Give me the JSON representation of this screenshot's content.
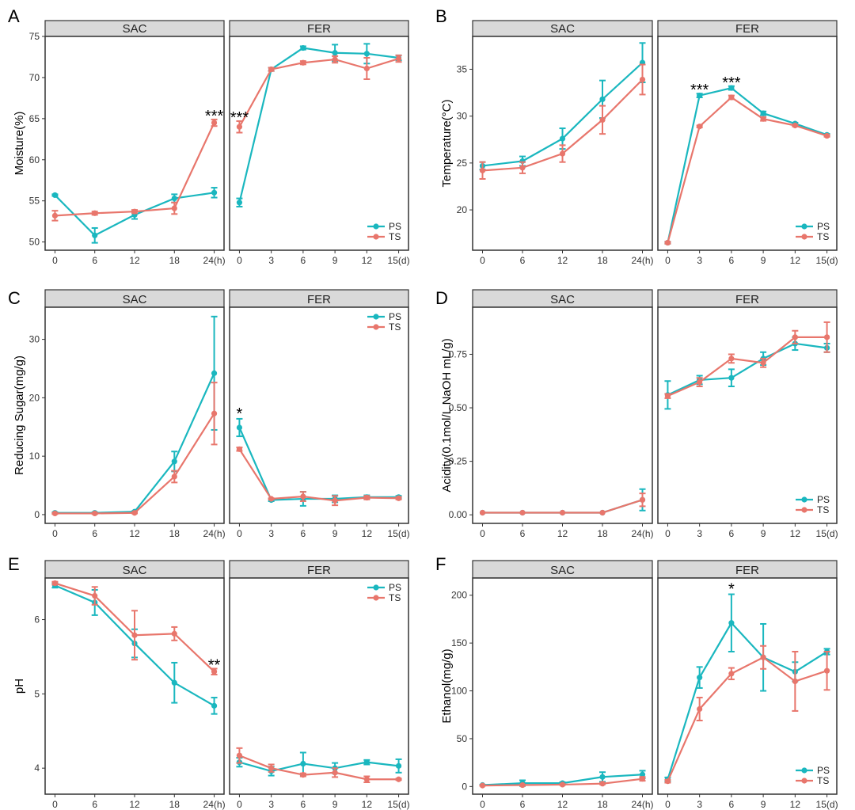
{
  "colors": {
    "PS": "#1ab7bf",
    "TS": "#e8766c",
    "strip": "#d9d9d9",
    "frame": "#333333"
  },
  "legend_labels": [
    "PS",
    "TS"
  ],
  "chart_data": [
    {
      "panel": "A",
      "type": "line",
      "ylabel": "Moisture(%)",
      "ylim": [
        49,
        75
      ],
      "yticks": [
        50,
        55,
        60,
        65,
        70,
        75
      ],
      "legend_position": "bottom-right",
      "facets": [
        {
          "strip": "SAC",
          "xticks": [
            "0",
            "6",
            "12",
            "18",
            "24(h)"
          ],
          "series": [
            {
              "name": "PS",
              "values": [
                55.7,
                50.8,
                53.3,
                55.3,
                56.0
              ],
              "errors": [
                0.1,
                0.9,
                0.5,
                0.5,
                0.6
              ]
            },
            {
              "name": "TS",
              "values": [
                53.2,
                53.5,
                53.7,
                54.1,
                64.5
              ],
              "errors": [
                0.6,
                0.2,
                0.2,
                0.7,
                0.4
              ]
            }
          ],
          "annotations": [
            {
              "index": 4,
              "label": "***"
            }
          ]
        },
        {
          "strip": "FER",
          "xticks": [
            "0",
            "3",
            "6",
            "9",
            "12",
            "15(d)"
          ],
          "series": [
            {
              "name": "PS",
              "values": [
                54.8,
                71.0,
                73.6,
                73.0,
                72.9,
                72.4
              ],
              "errors": [
                0.5,
                0.2,
                0.2,
                1.0,
                1.2,
                0.3
              ]
            },
            {
              "name": "TS",
              "values": [
                64.0,
                71.0,
                71.8,
                72.2,
                71.1,
                72.3
              ],
              "errors": [
                0.7,
                0.2,
                0.2,
                0.4,
                1.3,
                0.4
              ]
            }
          ],
          "annotations": [
            {
              "index": 0,
              "label": "***"
            }
          ]
        }
      ]
    },
    {
      "panel": "B",
      "type": "line",
      "ylabel": "Temperature(°C)",
      "ylim": [
        15.7,
        38.5
      ],
      "yticks": [
        20,
        25,
        30,
        35
      ],
      "legend_position": "bottom-right",
      "facets": [
        {
          "strip": "SAC",
          "xticks": [
            "0",
            "6",
            "12",
            "18",
            "24(h)"
          ],
          "series": [
            {
              "name": "PS",
              "values": [
                24.7,
                25.2,
                27.6,
                31.8,
                35.7
              ],
              "errors": [
                0.4,
                0.5,
                1.1,
                2.0,
                2.1
              ]
            },
            {
              "name": "TS",
              "values": [
                24.2,
                24.5,
                26.0,
                29.6,
                33.9
              ],
              "errors": [
                0.9,
                0.6,
                0.9,
                1.5,
                1.6
              ]
            }
          ],
          "annotations": []
        },
        {
          "strip": "FER",
          "xticks": [
            "0",
            "3",
            "6",
            "9",
            "12",
            "15(d)"
          ],
          "series": [
            {
              "name": "PS",
              "values": [
                16.5,
                32.2,
                33.0,
                30.3,
                29.2,
                28.0
              ],
              "errors": [
                0.1,
                0.2,
                0.2,
                0.2,
                0.1,
                0.1
              ]
            },
            {
              "name": "TS",
              "values": [
                16.5,
                28.9,
                32.0,
                29.7,
                29.0,
                27.9
              ],
              "errors": [
                0.1,
                0.1,
                0.2,
                0.2,
                0.1,
                0.1
              ]
            }
          ],
          "annotations": [
            {
              "index": 1,
              "label": "***"
            },
            {
              "index": 2,
              "label": "***"
            }
          ]
        }
      ]
    },
    {
      "panel": "C",
      "type": "line",
      "ylabel": "Reducing Sugar(mg/g)",
      "ylim": [
        -1.5,
        35.5
      ],
      "yticks": [
        0,
        10,
        20,
        30
      ],
      "legend_position": "top-right",
      "facets": [
        {
          "strip": "SAC",
          "xticks": [
            "0",
            "6",
            "12",
            "18",
            "24(h)"
          ],
          "series": [
            {
              "name": "PS",
              "values": [
                0.3,
                0.3,
                0.5,
                9.1,
                24.2
              ],
              "errors": [
                0.1,
                0.1,
                0.1,
                1.7,
                9.7
              ]
            },
            {
              "name": "TS",
              "values": [
                0.2,
                0.2,
                0.3,
                6.5,
                17.3
              ],
              "errors": [
                0.1,
                0.1,
                0.1,
                1.0,
                5.3
              ]
            }
          ],
          "annotations": []
        },
        {
          "strip": "FER",
          "xticks": [
            "0",
            "3",
            "6",
            "9",
            "12",
            "15(d)"
          ],
          "series": [
            {
              "name": "PS",
              "values": [
                14.9,
                2.5,
                2.7,
                2.7,
                3.0,
                3.0
              ],
              "errors": [
                1.5,
                0.2,
                1.2,
                0.6,
                0.3,
                0.2
              ]
            },
            {
              "name": "TS",
              "values": [
                11.2,
                2.7,
                3.1,
                2.4,
                2.9,
                2.8
              ],
              "errors": [
                0.3,
                0.1,
                0.8,
                0.8,
                0.3,
                0.2
              ]
            }
          ],
          "annotations": [
            {
              "index": 0,
              "label": "*"
            }
          ]
        }
      ]
    },
    {
      "panel": "D",
      "type": "line",
      "ylabel": "Acidity(0.1mol/L NaOH mL/g)",
      "ylim": [
        -0.04,
        0.97
      ],
      "yticks": [
        0.0,
        0.25,
        0.5,
        0.75
      ],
      "ytick_labels": [
        "0.00",
        "0.25",
        "0.50",
        "0.75"
      ],
      "legend_position": "bottom-right",
      "facets": [
        {
          "strip": "SAC",
          "xticks": [
            "0",
            "6",
            "12",
            "18",
            "24(h)"
          ],
          "series": [
            {
              "name": "PS",
              "values": [
                0.01,
                0.01,
                0.01,
                0.01,
                0.07
              ],
              "errors": [
                0.0,
                0.0,
                0.0,
                0.0,
                0.05
              ]
            },
            {
              "name": "TS",
              "values": [
                0.01,
                0.01,
                0.01,
                0.01,
                0.07
              ],
              "errors": [
                0.0,
                0.0,
                0.0,
                0.0,
                0.03
              ]
            }
          ],
          "annotations": []
        },
        {
          "strip": "FER",
          "xticks": [
            "0",
            "3",
            "6",
            "9",
            "12",
            "15(d)"
          ],
          "series": [
            {
              "name": "PS",
              "values": [
                0.56,
                0.63,
                0.64,
                0.73,
                0.8,
                0.78
              ],
              "errors": [
                0.065,
                0.02,
                0.04,
                0.03,
                0.03,
                0.02
              ]
            },
            {
              "name": "TS",
              "values": [
                0.555,
                0.62,
                0.73,
                0.71,
                0.83,
                0.83
              ],
              "errors": [
                0.01,
                0.02,
                0.02,
                0.02,
                0.03,
                0.07
              ]
            }
          ],
          "annotations": []
        }
      ]
    },
    {
      "panel": "E",
      "type": "line",
      "ylabel": "pH",
      "ylim": [
        3.65,
        6.56
      ],
      "yticks": [
        4,
        5,
        6
      ],
      "legend_position": "top-right",
      "facets": [
        {
          "strip": "SAC",
          "xticks": [
            "0",
            "6",
            "12",
            "18",
            "24(h)"
          ],
          "series": [
            {
              "name": "PS",
              "values": [
                6.46,
                6.23,
                5.68,
                5.15,
                4.84
              ],
              "errors": [
                0.03,
                0.17,
                0.19,
                0.27,
                0.11
              ]
            },
            {
              "name": "TS",
              "values": [
                6.49,
                6.32,
                5.79,
                5.81,
                5.3
              ],
              "errors": [
                0.02,
                0.12,
                0.33,
                0.09,
                0.04
              ]
            }
          ],
          "annotations": [
            {
              "index": 4,
              "label": "**"
            }
          ]
        },
        {
          "strip": "FER",
          "xticks": [
            "0",
            "3",
            "6",
            "9",
            "12",
            "15(d)"
          ],
          "series": [
            {
              "name": "PS",
              "values": [
                4.08,
                3.96,
                4.06,
                4.0,
                4.08,
                4.03
              ],
              "errors": [
                0.06,
                0.06,
                0.15,
                0.07,
                0.03,
                0.09
              ]
            },
            {
              "name": "TS",
              "values": [
                4.17,
                4.0,
                3.91,
                3.94,
                3.85,
                3.85
              ],
              "errors": [
                0.1,
                0.05,
                0.02,
                0.06,
                0.04,
                0.01
              ]
            }
          ],
          "annotations": []
        }
      ]
    },
    {
      "panel": "F",
      "type": "line",
      "ylabel": "Ethanol(mg/g)",
      "ylim": [
        -8,
        218
      ],
      "yticks": [
        0,
        50,
        100,
        150,
        200
      ],
      "legend_position": "bottom-right",
      "facets": [
        {
          "strip": "SAC",
          "xticks": [
            "0",
            "6",
            "12",
            "18",
            "24(h)"
          ],
          "series": [
            {
              "name": "PS",
              "values": [
                1.5,
                3.5,
                3.5,
                10.0,
                12.5
              ],
              "errors": [
                0.3,
                3.0,
                1.0,
                5.0,
                4.0
              ]
            },
            {
              "name": "TS",
              "values": [
                1.0,
                1.5,
                2.0,
                3.0,
                8.0
              ],
              "errors": [
                0.2,
                0.5,
                0.5,
                0.8,
                2.0
              ]
            }
          ],
          "annotations": []
        },
        {
          "strip": "FER",
          "xticks": [
            "0",
            "3",
            "6",
            "9",
            "12",
            "15(d)"
          ],
          "series": [
            {
              "name": "PS",
              "values": [
                7.5,
                114.0,
                171.0,
                135.0,
                120.0,
                141.0
              ],
              "errors": [
                2.0,
                11.0,
                30.0,
                35.0,
                10.0,
                3.0
              ]
            },
            {
              "name": "TS",
              "values": [
                5.5,
                81.0,
                118.0,
                135.0,
                110.0,
                121.0
              ],
              "errors": [
                1.5,
                12.0,
                6.0,
                12.0,
                31.0,
                20.0
              ]
            }
          ],
          "annotations": [
            {
              "index": 2,
              "label": "*"
            }
          ]
        }
      ]
    }
  ]
}
